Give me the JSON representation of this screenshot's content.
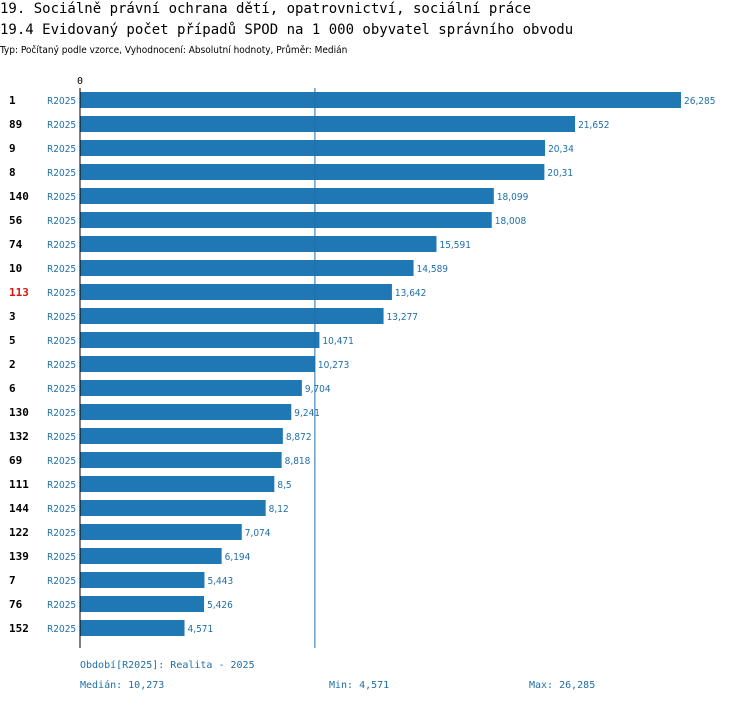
{
  "header": {
    "title": "19. Sociálně právní ochrana dětí, opatrovnictví, sociální práce",
    "subtitle": "19.4 Evidovaný počet případů SPOD na 1 000 obyvatel správního obvodu",
    "type_line": "Typ: Počítaný podle vzorce, Vyhodnocení: Absolutní hodnoty, Průměr: Medián"
  },
  "footer": {
    "period": "Období[R2025]: Realita - 2025",
    "median": "Medián: 10,273",
    "min": "Min: 4,571",
    "max": "Max: 26,285"
  },
  "colors": {
    "bar": "#1f77b4",
    "label": "#1f6ea8",
    "highlight": "#e0120f"
  },
  "chart_data": {
    "type": "bar",
    "orientation": "horizontal",
    "x_axis_start_label": "0",
    "xlim": [
      0,
      26.285
    ],
    "median": 10.273,
    "rows": [
      {
        "id": "1",
        "period": "R2025",
        "value": 26.285,
        "label": "26,285",
        "highlight": false
      },
      {
        "id": "89",
        "period": "R2025",
        "value": 21.652,
        "label": "21,652",
        "highlight": false
      },
      {
        "id": "9",
        "period": "R2025",
        "value": 20.34,
        "label": "20,34",
        "highlight": false
      },
      {
        "id": "8",
        "period": "R2025",
        "value": 20.31,
        "label": "20,31",
        "highlight": false
      },
      {
        "id": "140",
        "period": "R2025",
        "value": 18.099,
        "label": "18,099",
        "highlight": false
      },
      {
        "id": "56",
        "period": "R2025",
        "value": 18.008,
        "label": "18,008",
        "highlight": false
      },
      {
        "id": "74",
        "period": "R2025",
        "value": 15.591,
        "label": "15,591",
        "highlight": false
      },
      {
        "id": "10",
        "period": "R2025",
        "value": 14.589,
        "label": "14,589",
        "highlight": false
      },
      {
        "id": "113",
        "period": "R2025",
        "value": 13.642,
        "label": "13,642",
        "highlight": true
      },
      {
        "id": "3",
        "period": "R2025",
        "value": 13.277,
        "label": "13,277",
        "highlight": false
      },
      {
        "id": "5",
        "period": "R2025",
        "value": 10.471,
        "label": "10,471",
        "highlight": false
      },
      {
        "id": "2",
        "period": "R2025",
        "value": 10.273,
        "label": "10,273",
        "highlight": false
      },
      {
        "id": "6",
        "period": "R2025",
        "value": 9.704,
        "label": "9,704",
        "highlight": false
      },
      {
        "id": "130",
        "period": "R2025",
        "value": 9.241,
        "label": "9,241",
        "highlight": false
      },
      {
        "id": "132",
        "period": "R2025",
        "value": 8.872,
        "label": "8,872",
        "highlight": false
      },
      {
        "id": "69",
        "period": "R2025",
        "value": 8.818,
        "label": "8,818",
        "highlight": false
      },
      {
        "id": "111",
        "period": "R2025",
        "value": 8.5,
        "label": "8,5",
        "highlight": false
      },
      {
        "id": "144",
        "period": "R2025",
        "value": 8.12,
        "label": "8,12",
        "highlight": false
      },
      {
        "id": "122",
        "period": "R2025",
        "value": 7.074,
        "label": "7,074",
        "highlight": false
      },
      {
        "id": "139",
        "period": "R2025",
        "value": 6.194,
        "label": "6,194",
        "highlight": false
      },
      {
        "id": "7",
        "period": "R2025",
        "value": 5.443,
        "label": "5,443",
        "highlight": false
      },
      {
        "id": "76",
        "period": "R2025",
        "value": 5.426,
        "label": "5,426",
        "highlight": false
      },
      {
        "id": "152",
        "period": "R2025",
        "value": 4.571,
        "label": "4,571",
        "highlight": false
      }
    ]
  }
}
